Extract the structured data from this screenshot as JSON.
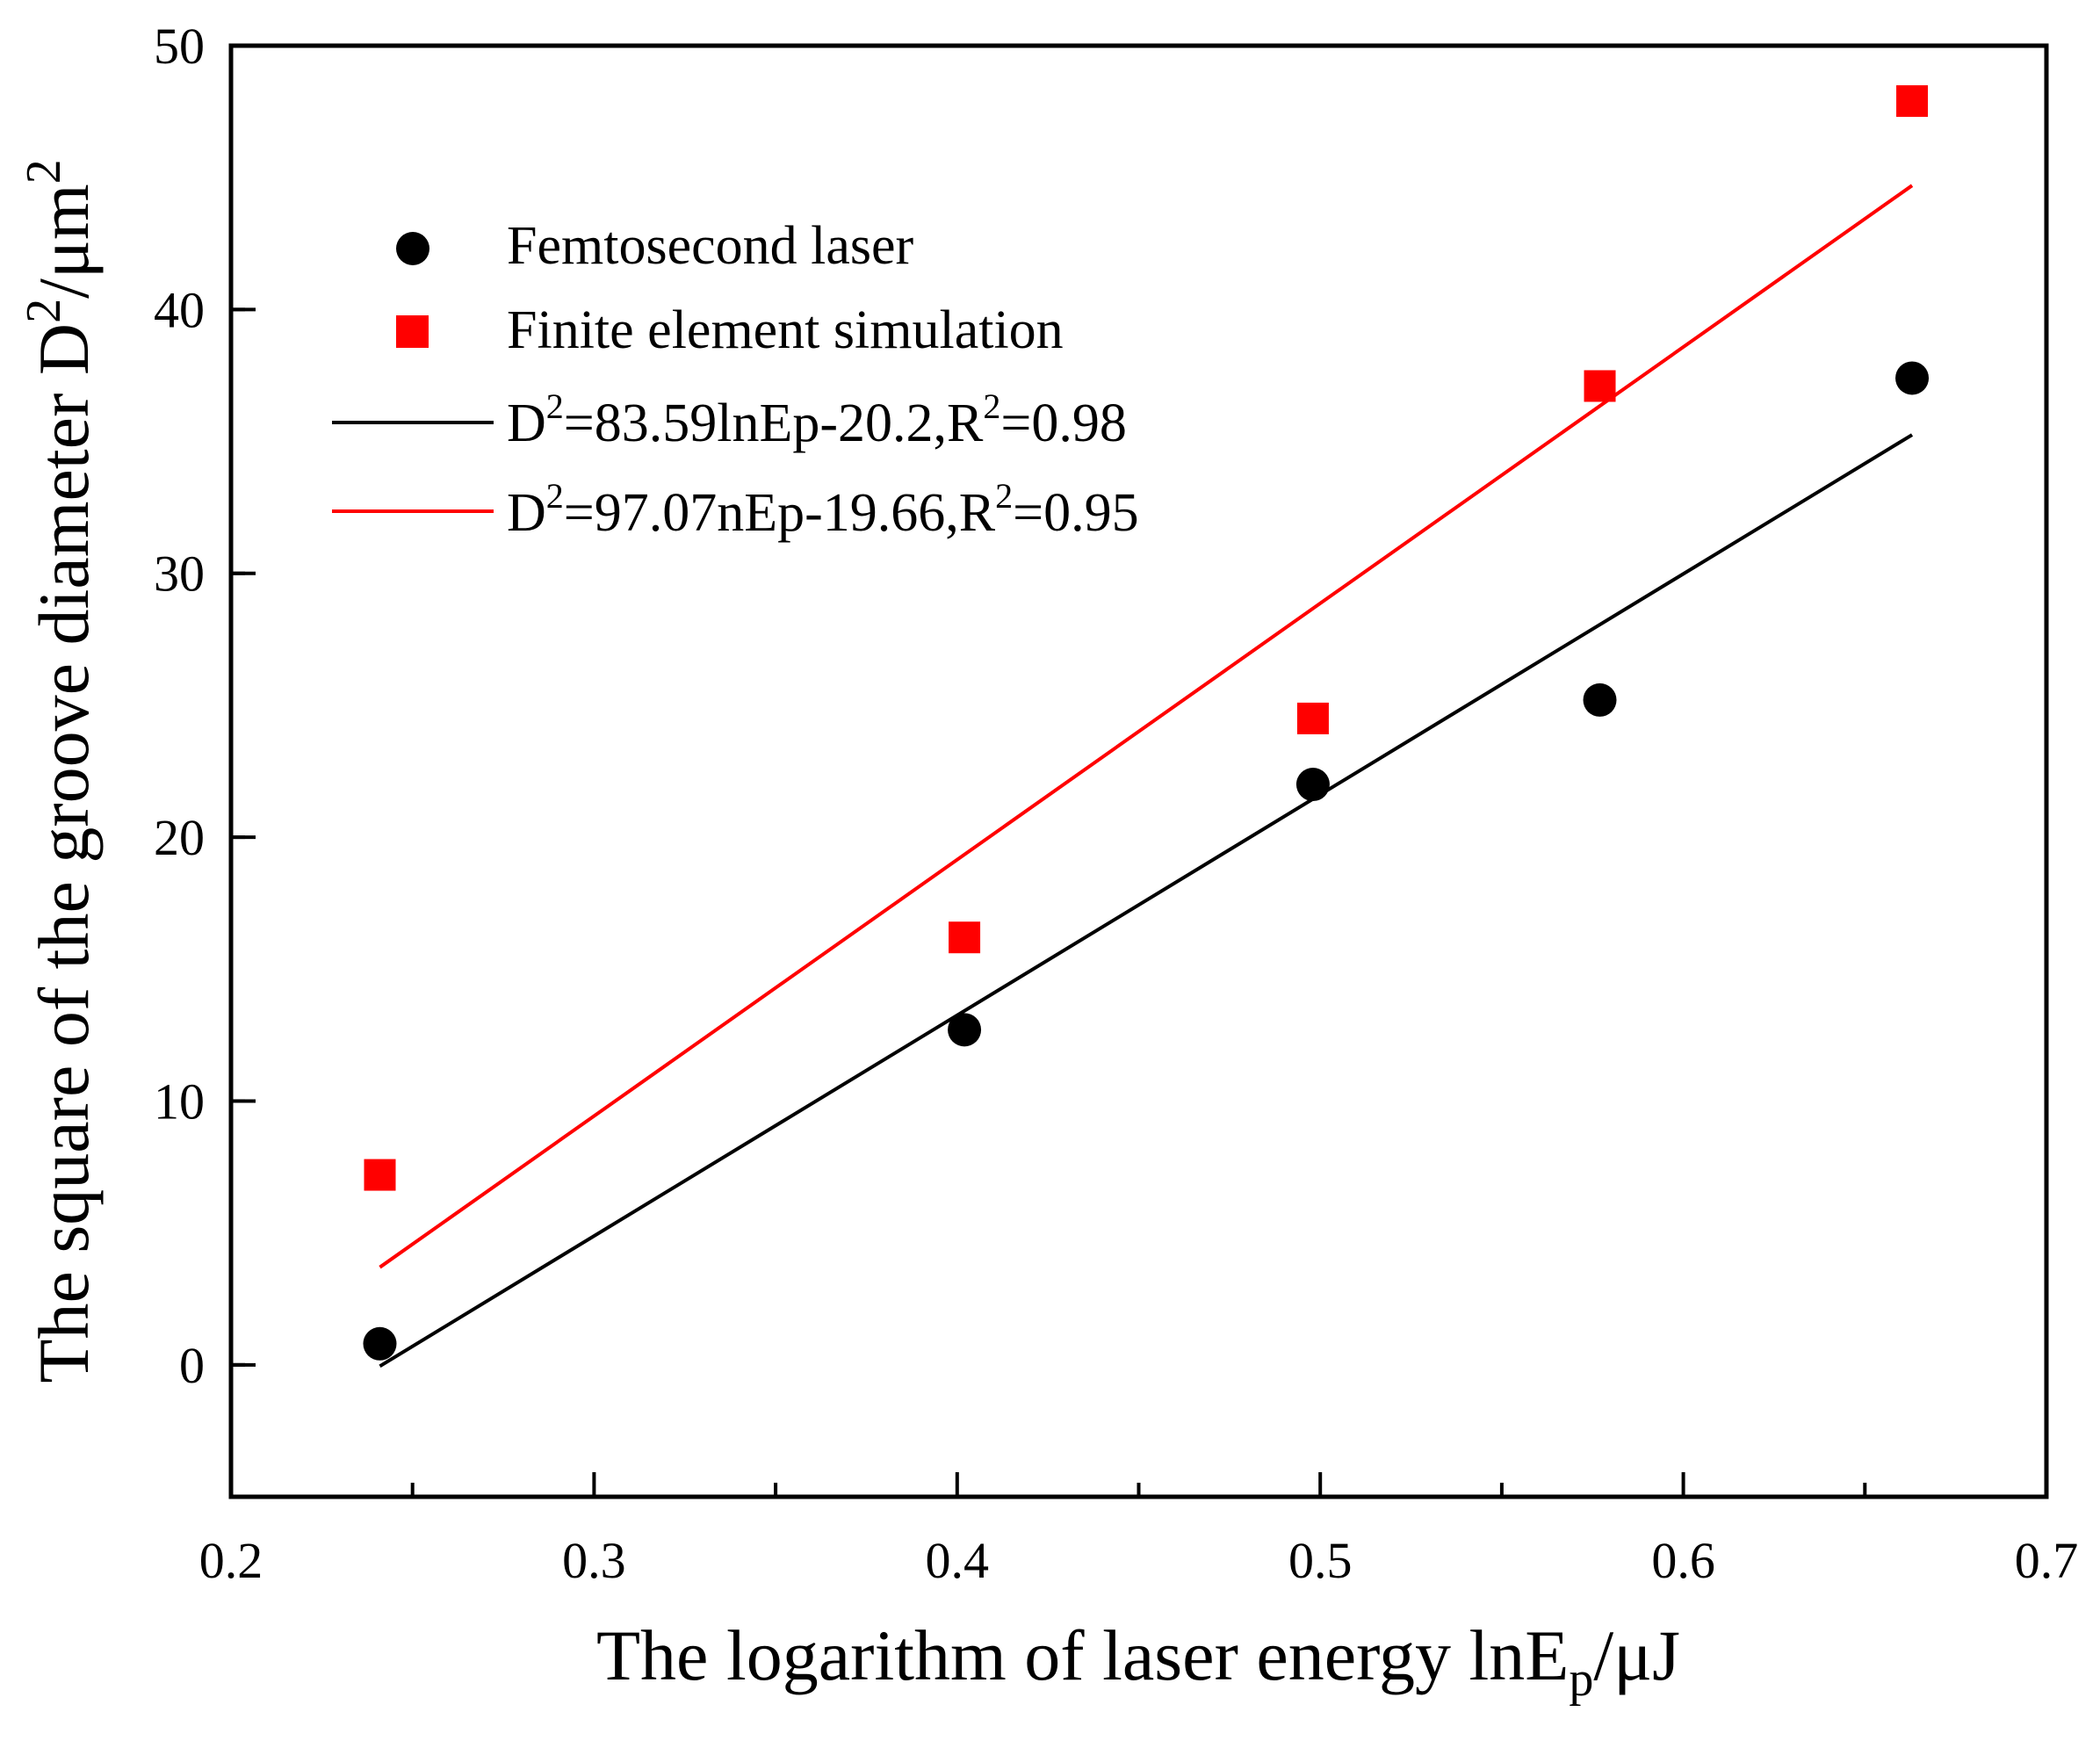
{
  "chart_data": {
    "type": "scatter",
    "xlabel_main": "The logarithm of laser energy lnE",
    "xlabel_sub": "p",
    "xlabel_tail": "/μJ",
    "ylabel_main": "The square of the groove diameter D",
    "ylabel_sup": "2",
    "ylabel_tail": "/μm",
    "ylabel_sup2": "2",
    "xlim": [
      0.2,
      0.7
    ],
    "ylim": [
      -5,
      50
    ],
    "xticks": [
      0.2,
      0.3,
      0.4,
      0.5,
      0.6,
      0.7
    ],
    "xticklabels": [
      "0.2",
      "0.3",
      "0.4",
      "0.5",
      "0.6",
      "0.7"
    ],
    "yticks": [
      0,
      10,
      20,
      30,
      40,
      50
    ],
    "yticklabels": [
      "0",
      "10",
      "20",
      "30",
      "40",
      "50"
    ],
    "series": [
      {
        "name": "Femtosecond laser",
        "marker": "circle",
        "color": "#000000",
        "x": [
          0.241,
          0.402,
          0.498,
          0.577,
          0.663
        ],
        "y": [
          0.8,
          12.7,
          22.0,
          25.2,
          37.4
        ]
      },
      {
        "name": "Finite element simulation",
        "marker": "square",
        "color": "#ff0000",
        "x": [
          0.241,
          0.402,
          0.498,
          0.577,
          0.663
        ],
        "y": [
          7.2,
          16.2,
          24.5,
          37.1,
          47.9
        ]
      }
    ],
    "fits": [
      {
        "label_a": "D",
        "label_sup": "2",
        "label_b": "=83.59lnEp-20.2,R",
        "label_sup2": "2",
        "label_c": "=0.98",
        "color": "#000000",
        "x": [
          0.241,
          0.663
        ],
        "y": [
          -0.05,
          35.25
        ]
      },
      {
        "label_a": "D",
        "label_sup": "2",
        "label_b": "=97.07nEp-19.66,R",
        "label_sup2": "2",
        "label_c": "=0.95",
        "color": "#ff0000",
        "x": [
          0.241,
          0.663
        ],
        "y": [
          3.7,
          44.7
        ]
      }
    ],
    "legend_position": "top-left"
  }
}
